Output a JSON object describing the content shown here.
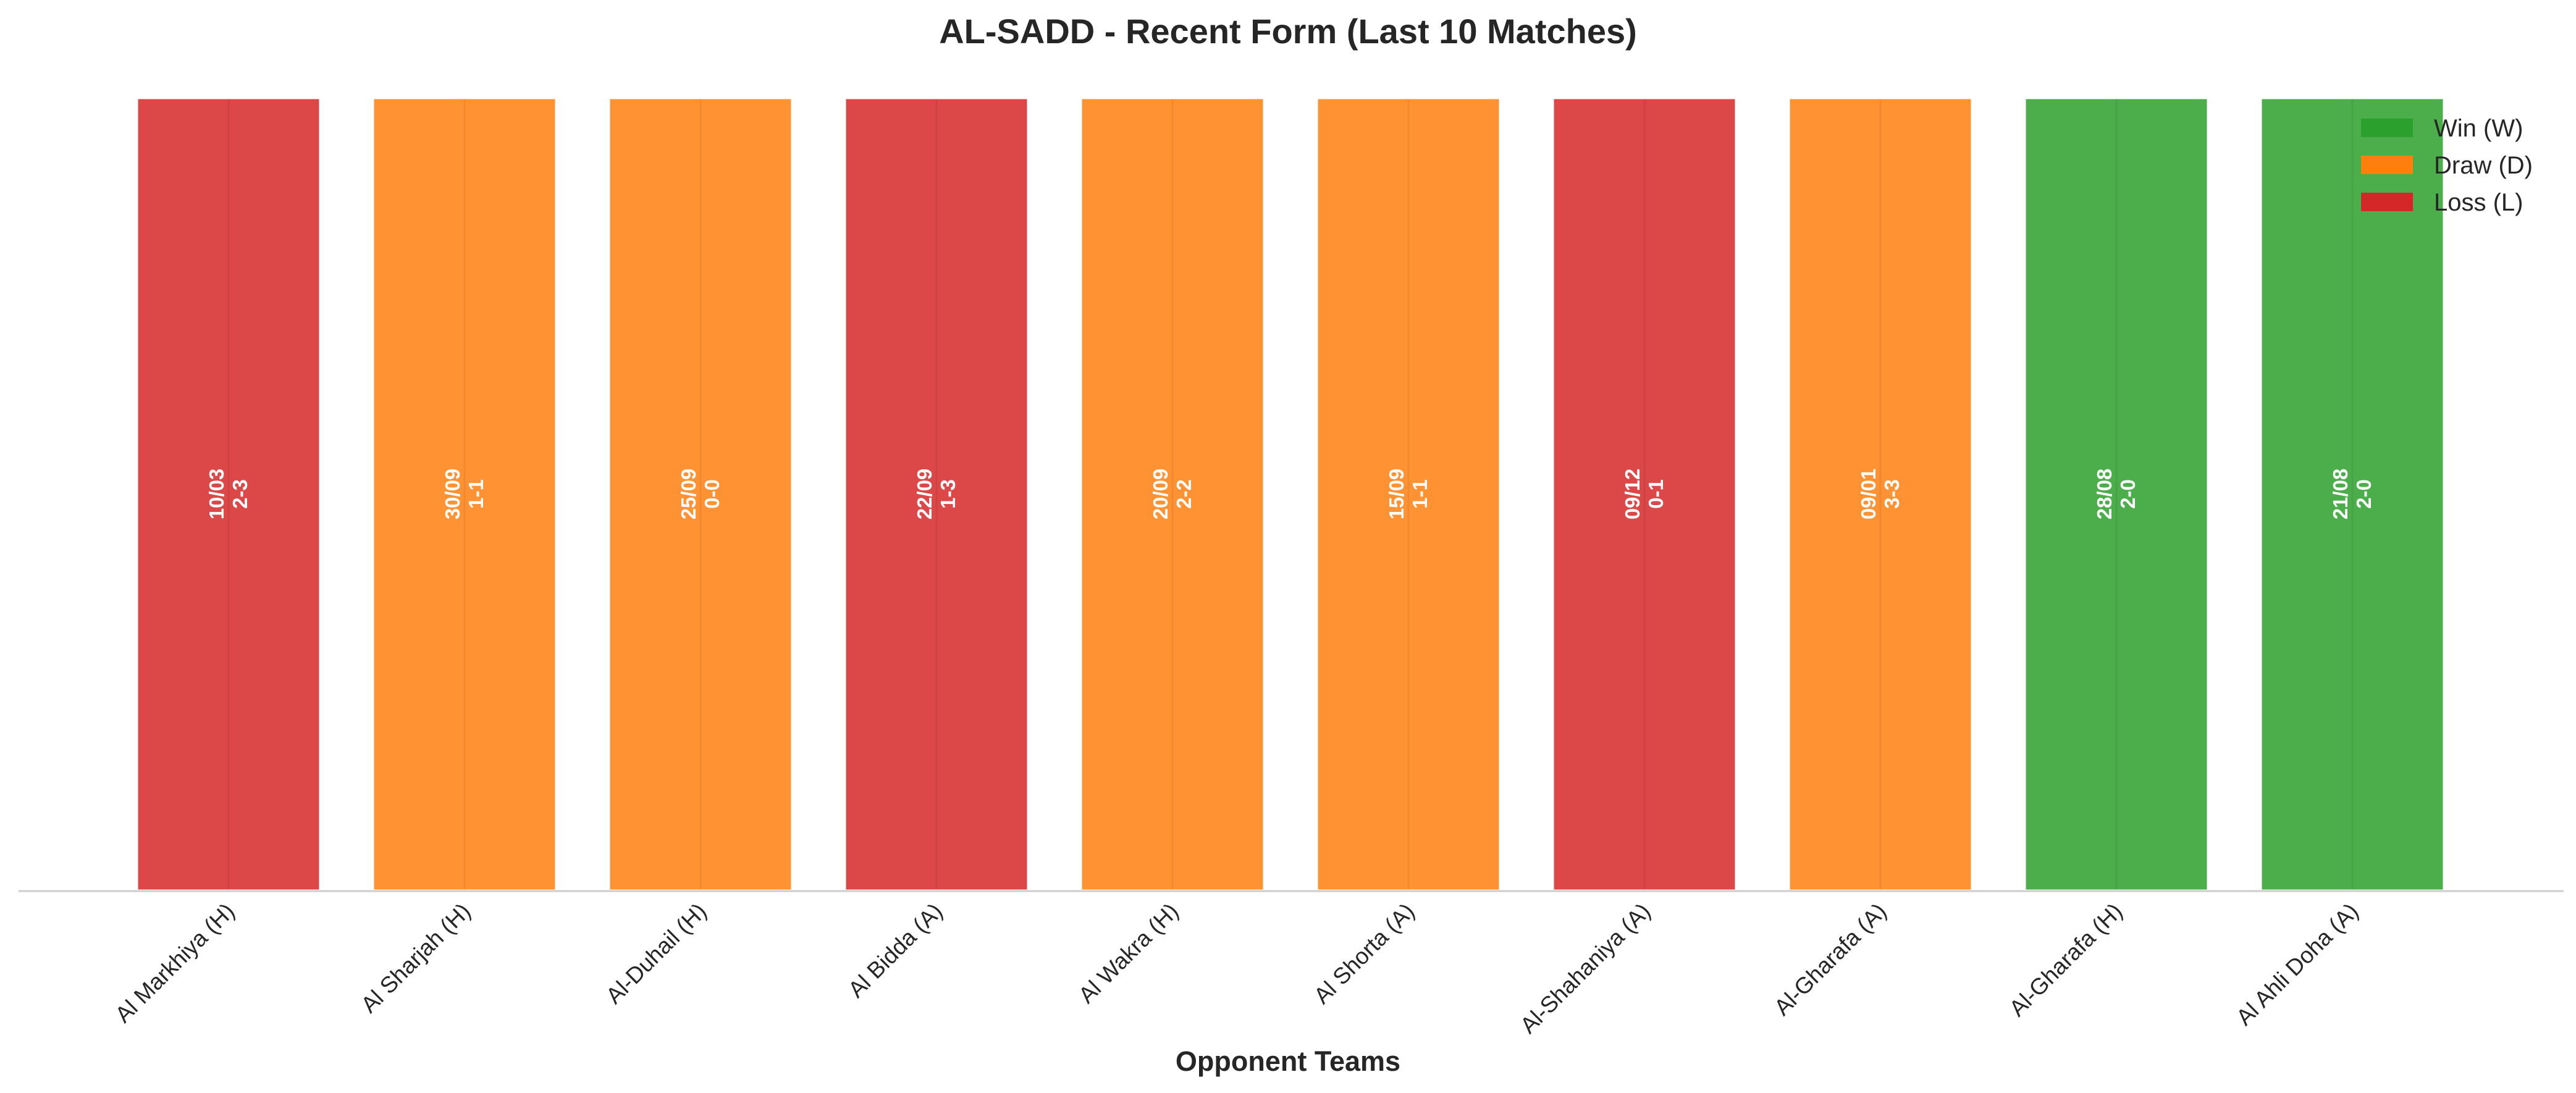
{
  "chart_data": {
    "type": "bar",
    "title": "AL-SADD - Recent Form (Last 10 Matches)",
    "xlabel": "Opponent Teams",
    "ylabel": "",
    "ylim": [
      0,
      1
    ],
    "grid": false,
    "legend_position": "top-right",
    "categories": [
      "Al Markhiya (H)",
      "Al Sharjah (H)",
      "Al-Duhail (H)",
      "Al Bidda (A)",
      "Al Wakra (H)",
      "Al Shorta (A)",
      "Al-Shahaniya (A)",
      "Al-Gharafa (A)",
      "Al-Gharafa (H)",
      "Al Ahli Doha (A)"
    ],
    "values": [
      1,
      1,
      1,
      1,
      1,
      1,
      1,
      1,
      1,
      1
    ],
    "results": [
      "L",
      "D",
      "D",
      "L",
      "D",
      "D",
      "L",
      "D",
      "W",
      "W"
    ],
    "dates": [
      "10/03",
      "30/09",
      "25/09",
      "22/09",
      "20/09",
      "15/09",
      "09/12",
      "09/01",
      "28/08",
      "21/08"
    ],
    "scores": [
      "2-3",
      "1-1",
      "0-0",
      "1-3",
      "2-2",
      "1-1",
      "0-1",
      "3-3",
      "2-0",
      "2-0"
    ],
    "legend": [
      {
        "key": "W",
        "label": "Win (W)",
        "color": "#2ca02c"
      },
      {
        "key": "D",
        "label": "Draw (D)",
        "color": "#ff7f0e"
      },
      {
        "key": "L",
        "label": "Loss (L)",
        "color": "#d62728"
      }
    ]
  }
}
